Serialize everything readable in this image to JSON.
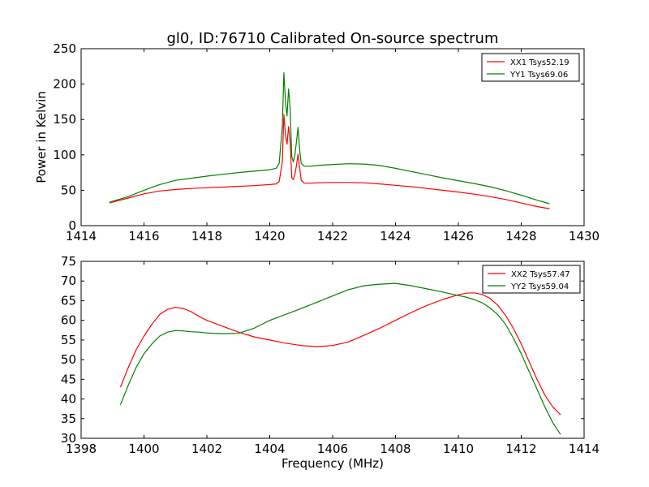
{
  "title": "gl0, ID:76710 Calibrated On-source spectrum",
  "colors": {
    "xx": "#ff0000",
    "yy": "#008000"
  },
  "chart_data": [
    {
      "type": "line",
      "title": "gl0, ID:76710 Calibrated On-source spectrum",
      "xlabel": "",
      "ylabel": "Power in Kelvin",
      "xlim": [
        1414,
        1430
      ],
      "ylim": [
        0,
        250
      ],
      "xticks": [
        1414,
        1416,
        1418,
        1420,
        1422,
        1424,
        1426,
        1428,
        1430
      ],
      "yticks": [
        0,
        50,
        100,
        150,
        200,
        250
      ],
      "legend_position": "top-right",
      "grid": false,
      "series": [
        {
          "name": "XX1 Tsys52.19",
          "color": "#ff0000",
          "x": [
            1414.9,
            1415.5,
            1416.0,
            1416.5,
            1417.0,
            1417.5,
            1418.0,
            1418.5,
            1419.0,
            1419.5,
            1420.0,
            1420.2,
            1420.3,
            1420.4,
            1420.45,
            1420.5,
            1420.55,
            1420.6,
            1420.65,
            1420.7,
            1420.75,
            1420.8,
            1420.85,
            1420.9,
            1420.95,
            1421.0,
            1421.1,
            1421.3,
            1421.5,
            1422.0,
            1422.5,
            1423.0,
            1423.5,
            1424.0,
            1424.5,
            1425.0,
            1425.5,
            1426.0,
            1426.5,
            1427.0,
            1427.5,
            1428.0,
            1428.5,
            1428.9
          ],
          "y": [
            32,
            39,
            45,
            49,
            51,
            52.5,
            53.5,
            54.5,
            55.5,
            56.5,
            58,
            59,
            62,
            90,
            157,
            128,
            115,
            140,
            118,
            68,
            65,
            72,
            85,
            101,
            82,
            64,
            60,
            60,
            60.5,
            61,
            61,
            60.5,
            59,
            57,
            55,
            52.5,
            50,
            47.5,
            44.5,
            41,
            37,
            32,
            27,
            24
          ]
        },
        {
          "name": "YY1 Tsys69.06",
          "color": "#008000",
          "x": [
            1414.9,
            1415.5,
            1416.0,
            1416.5,
            1417.0,
            1417.5,
            1418.0,
            1418.5,
            1419.0,
            1419.5,
            1420.0,
            1420.2,
            1420.3,
            1420.4,
            1420.45,
            1420.5,
            1420.55,
            1420.6,
            1420.65,
            1420.7,
            1420.75,
            1420.8,
            1420.85,
            1420.9,
            1420.95,
            1421.0,
            1421.1,
            1421.3,
            1421.5,
            1422.0,
            1422.5,
            1423.0,
            1423.5,
            1424.0,
            1424.5,
            1425.0,
            1425.5,
            1426.0,
            1426.5,
            1427.0,
            1427.5,
            1428.0,
            1428.5,
            1428.9
          ],
          "y": [
            33,
            41,
            50,
            58,
            64,
            67,
            70,
            72.5,
            75,
            77,
            79,
            81,
            88,
            140,
            216,
            175,
            155,
            193,
            165,
            98,
            90,
            100,
            118,
            139,
            108,
            88,
            84,
            84,
            85,
            86.5,
            87.5,
            87,
            85,
            81,
            76.5,
            72,
            67.5,
            63.5,
            59.5,
            55,
            49.5,
            43,
            36,
            31
          ]
        }
      ]
    },
    {
      "type": "line",
      "title": "",
      "xlabel": "Frequency (MHz)",
      "ylabel": "",
      "xlim": [
        1398,
        1414
      ],
      "ylim": [
        30,
        75
      ],
      "xticks": [
        1398,
        1400,
        1402,
        1404,
        1406,
        1408,
        1410,
        1412,
        1414
      ],
      "yticks": [
        30,
        35,
        40,
        45,
        50,
        55,
        60,
        65,
        70,
        75
      ],
      "legend_position": "top-right",
      "grid": false,
      "series": [
        {
          "name": "XX2 Tsys57.47",
          "color": "#ff0000",
          "x": [
            1399.25,
            1399.5,
            1399.75,
            1400.0,
            1400.25,
            1400.5,
            1400.75,
            1401.0,
            1401.25,
            1401.5,
            1401.75,
            1402.0,
            1402.5,
            1403.0,
            1403.5,
            1404.0,
            1404.5,
            1405.0,
            1405.5,
            1406.0,
            1406.5,
            1407.0,
            1407.5,
            1408.0,
            1408.5,
            1409.0,
            1409.5,
            1410.0,
            1410.25,
            1410.5,
            1410.75,
            1411.0,
            1411.25,
            1411.5,
            1411.75,
            1412.0,
            1412.25,
            1412.5,
            1412.75,
            1413.0,
            1413.25
          ],
          "y": [
            43,
            48,
            52.5,
            56,
            59,
            61.5,
            62.8,
            63.3,
            63,
            62.2,
            61,
            60,
            58.5,
            57,
            55.8,
            55,
            54.2,
            53.6,
            53.3,
            53.6,
            54.5,
            56.2,
            58,
            60,
            62,
            63.8,
            65.3,
            66.5,
            66.9,
            67,
            66.6,
            65.6,
            63.9,
            61.3,
            58,
            54,
            49.5,
            45,
            41,
            38,
            36
          ]
        },
        {
          "name": "YY2 Tsys59.04",
          "color": "#008000",
          "x": [
            1399.25,
            1399.5,
            1399.75,
            1400.0,
            1400.25,
            1400.5,
            1400.75,
            1401.0,
            1401.25,
            1401.5,
            1401.75,
            1402.0,
            1402.5,
            1403.0,
            1403.5,
            1404.0,
            1404.5,
            1405.0,
            1405.5,
            1406.0,
            1406.5,
            1407.0,
            1407.5,
            1408.0,
            1408.5,
            1409.0,
            1409.5,
            1410.0,
            1410.25,
            1410.5,
            1410.75,
            1411.0,
            1411.25,
            1411.5,
            1411.75,
            1412.0,
            1412.25,
            1412.5,
            1412.75,
            1413.0,
            1413.25
          ],
          "y": [
            38.5,
            43.5,
            48,
            51.5,
            54,
            56,
            57,
            57.4,
            57.3,
            57.1,
            57,
            56.8,
            56.6,
            56.7,
            58,
            60,
            61.5,
            63,
            64.6,
            66.2,
            67.8,
            68.8,
            69.2,
            69.4,
            68.8,
            68,
            67.2,
            66.3,
            65.9,
            65.3,
            64.5,
            63.2,
            61.5,
            59,
            55.5,
            51.5,
            47,
            42.5,
            38,
            34,
            31
          ]
        }
      ]
    }
  ]
}
